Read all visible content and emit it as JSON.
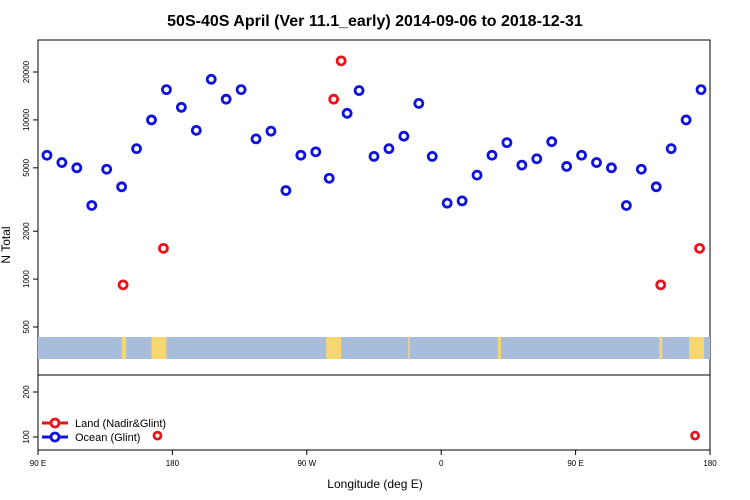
{
  "chart_data": {
    "type": "scatter",
    "title": "50S-40S April (Ver 11.1_early)   2014-09-06 to 2018-12-31",
    "xlabel": "Longitude (deg E)",
    "ylabel": "N Total",
    "x_axis": {
      "range_deg_from_90E": [
        0,
        450
      ],
      "ticks": [
        {
          "pos": 0,
          "label": "90 E"
        },
        {
          "pos": 90,
          "label": "180"
        },
        {
          "pos": 180,
          "label": "90 W"
        },
        {
          "pos": 270,
          "label": "0"
        },
        {
          "pos": 360,
          "label": "90 E"
        },
        {
          "pos": 450,
          "label": "180"
        }
      ]
    },
    "y_axis": {
      "scale": "log",
      "range": [
        350,
        30000
      ],
      "ticks": [
        500,
        1000,
        2000,
        5000,
        10000,
        20000
      ]
    },
    "lower_panel": {
      "y_range": [
        80,
        250
      ],
      "ticks": [
        100,
        200
      ]
    },
    "land_strip": {
      "ocean_color": "#a7bddb",
      "land_color": "#f5d670",
      "land_segments": [
        [
          56,
          59
        ],
        [
          76,
          86
        ],
        [
          193,
          203
        ],
        [
          248,
          249
        ],
        [
          308,
          310
        ],
        [
          416,
          418
        ],
        [
          436,
          446
        ]
      ]
    },
    "legend": {
      "placement": "bottom-left",
      "items": [
        {
          "label": "Land (Nadir&Glint)",
          "color": "#e8141c"
        },
        {
          "label": "Ocean (Glint)",
          "color": "#0d12dd"
        }
      ]
    },
    "series": [
      {
        "name": "Land (Nadir&Glint)",
        "color": "#e8141c",
        "points": [
          [
            57,
            920
          ],
          [
            84,
            1560
          ],
          [
            198,
            13500
          ],
          [
            203,
            23500
          ],
          [
            417,
            920
          ],
          [
            443,
            1560
          ]
        ]
      },
      {
        "name": "Ocean (Glint)",
        "color": "#0d12dd",
        "points": [
          [
            6,
            6000
          ],
          [
            16,
            5400
          ],
          [
            26,
            5000
          ],
          [
            36,
            2900
          ],
          [
            46,
            4900
          ],
          [
            56,
            3800
          ],
          [
            66,
            6600
          ],
          [
            76,
            10000
          ],
          [
            86,
            15500
          ],
          [
            96,
            12000
          ],
          [
            106,
            8600
          ],
          [
            116,
            18000
          ],
          [
            126,
            13500
          ],
          [
            136,
            15500
          ],
          [
            146,
            7600
          ],
          [
            156,
            8500
          ],
          [
            166,
            3600
          ],
          [
            176,
            6000
          ],
          [
            186,
            6300
          ],
          [
            195,
            4300
          ],
          [
            207,
            11000
          ],
          [
            215,
            15300
          ],
          [
            225,
            5900
          ],
          [
            235,
            6600
          ],
          [
            245,
            7900
          ],
          [
            255,
            12700
          ],
          [
            264,
            5900
          ],
          [
            274,
            3000
          ],
          [
            284,
            3100
          ],
          [
            294,
            4500
          ],
          [
            304,
            6000
          ],
          [
            314,
            7200
          ],
          [
            324,
            5200
          ],
          [
            334,
            5700
          ],
          [
            344,
            7300
          ],
          [
            354,
            5100
          ],
          [
            364,
            6000
          ],
          [
            374,
            5400
          ],
          [
            384,
            5000
          ],
          [
            394,
            2900
          ],
          [
            404,
            4900
          ],
          [
            414,
            3800
          ],
          [
            424,
            6600
          ],
          [
            434,
            10000
          ],
          [
            444,
            15500
          ]
        ]
      }
    ],
    "lower_series": [
      {
        "name": "Land (Nadir&Glint)",
        "color": "#e8141c",
        "points": [
          [
            80,
            103
          ],
          [
            440,
            103
          ]
        ]
      }
    ]
  }
}
